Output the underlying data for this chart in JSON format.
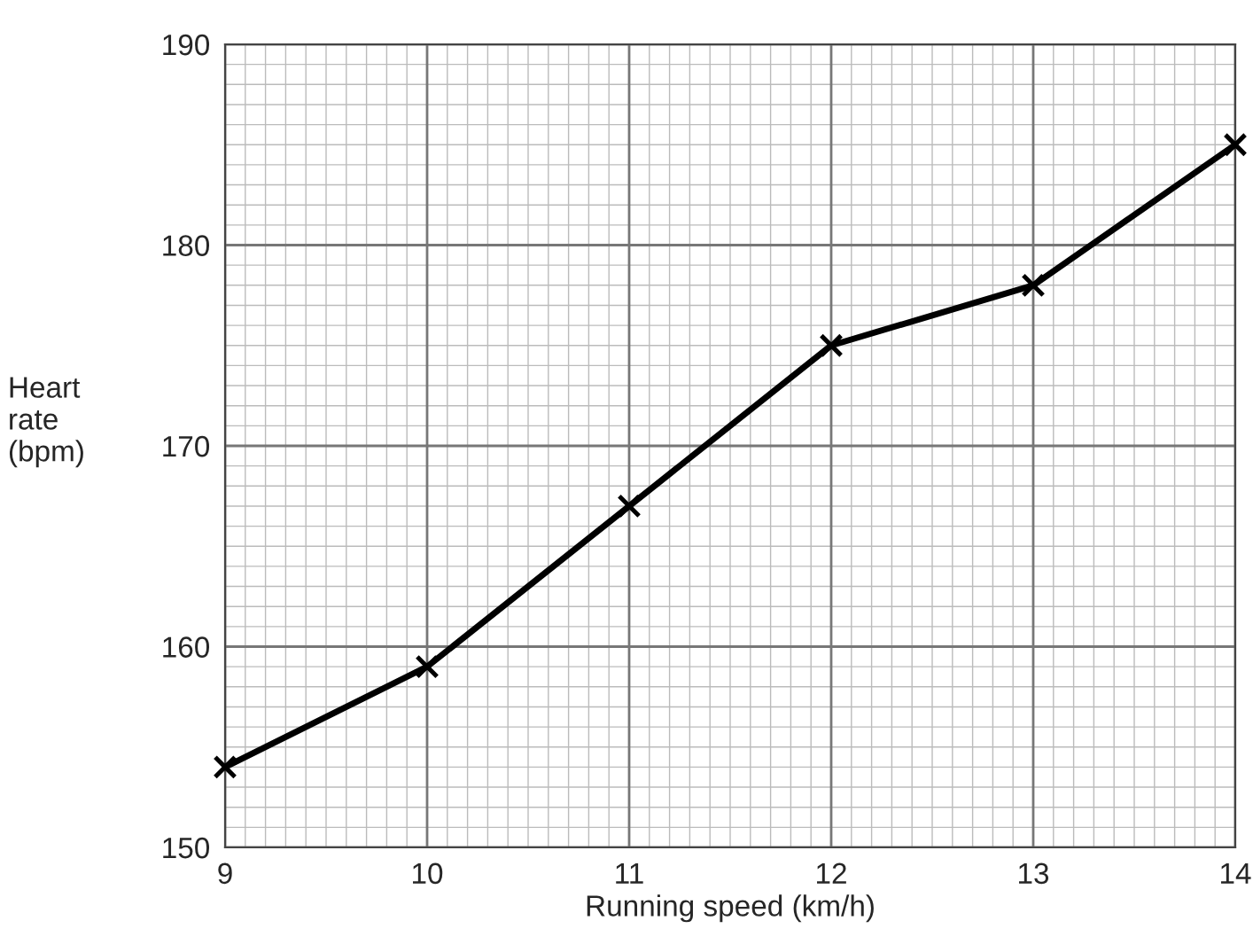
{
  "chart_data": {
    "type": "line",
    "xlabel": "Running speed (km/h)",
    "ylabel": "Heart\nrate\n(bpm)",
    "x": [
      9,
      10,
      11,
      12,
      13,
      14
    ],
    "series": [
      {
        "color": "#000000",
        "values": [
          154,
          159,
          167,
          175,
          178,
          185
        ]
      }
    ],
    "xlim": [
      9,
      14
    ],
    "ylim": [
      150,
      190
    ],
    "xticks": [
      9,
      10,
      11,
      12,
      13,
      14
    ],
    "yticks": [
      150,
      160,
      170,
      180,
      190
    ],
    "grid": true,
    "marker": "cross",
    "line_style": "solid"
  }
}
